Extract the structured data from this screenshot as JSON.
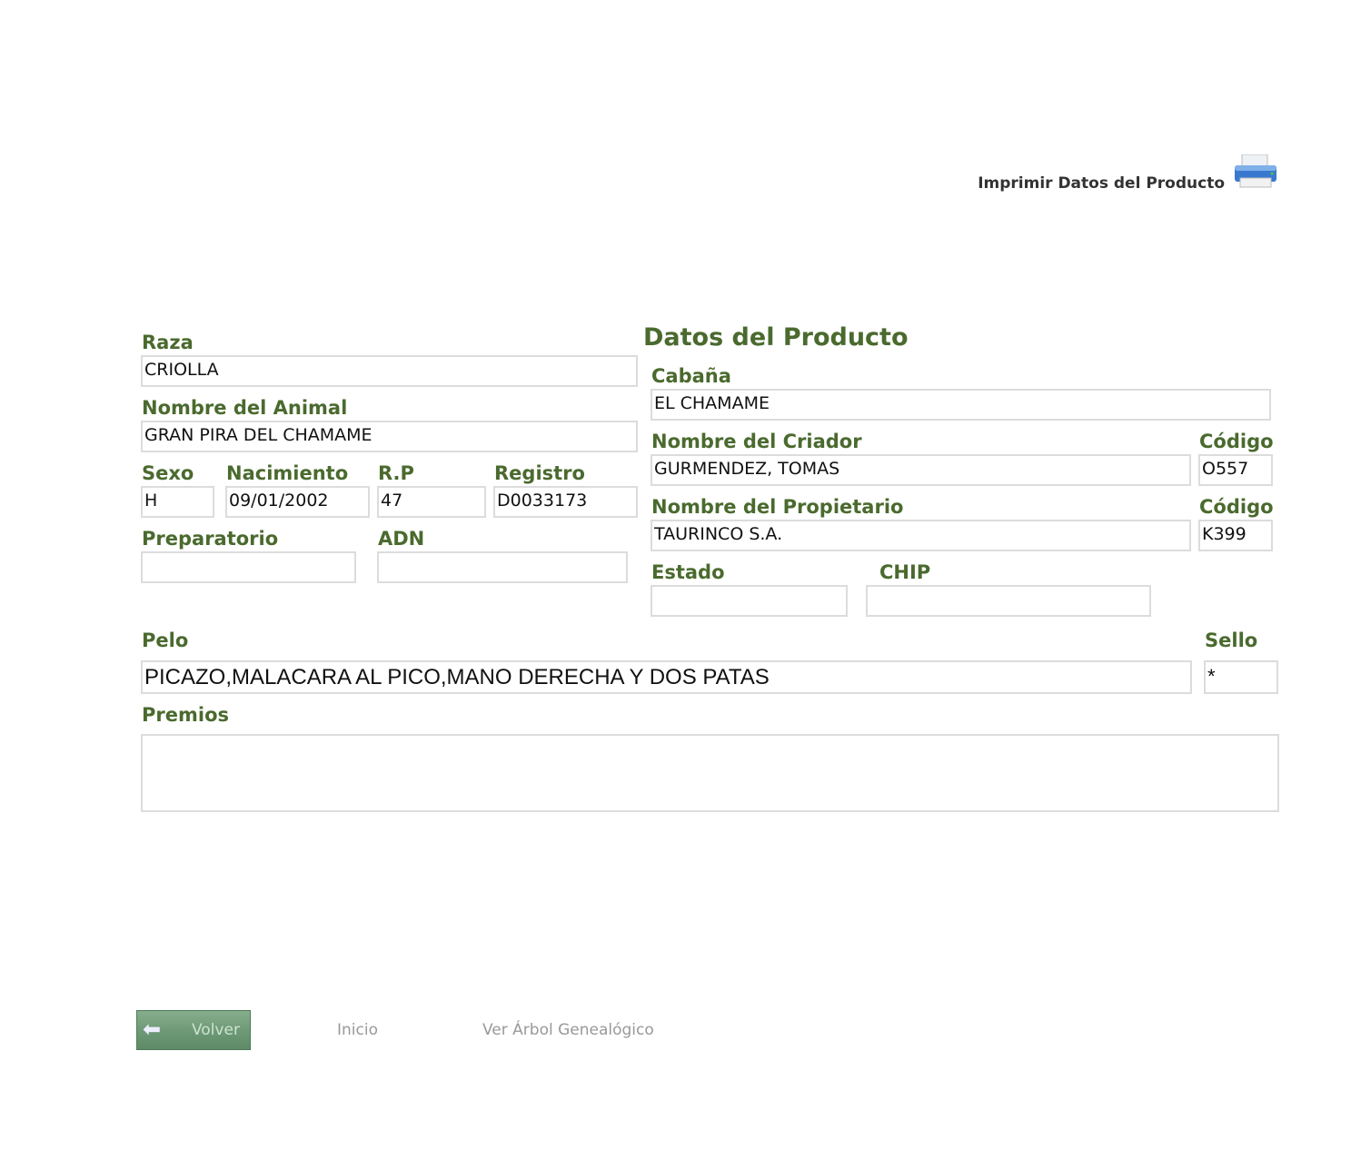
{
  "print": {
    "label": "Imprimir Datos del Producto",
    "icon": "printer-icon"
  },
  "heading": "Datos del Producto",
  "fields": {
    "raza": {
      "label": "Raza",
      "value": "CRIOLLA"
    },
    "nombre_animal": {
      "label": "Nombre del Animal",
      "value": "GRAN PIRA DEL CHAMAME"
    },
    "sexo": {
      "label": "Sexo",
      "value": "H"
    },
    "nacimiento": {
      "label": "Nacimiento",
      "value": "09/01/2002"
    },
    "rp": {
      "label": "R.P",
      "value": "47"
    },
    "registro": {
      "label": "Registro",
      "value": "D0033173"
    },
    "preparatorio": {
      "label": "Preparatorio",
      "value": ""
    },
    "adn": {
      "label": "ADN",
      "value": ""
    },
    "cabana": {
      "label": "Cabaña",
      "value": "EL CHAMAME"
    },
    "criador": {
      "label": "Nombre del Criador",
      "value": "GURMENDEZ, TOMAS"
    },
    "criador_codigo": {
      "label": "Código",
      "value": "O557"
    },
    "propietario": {
      "label": "Nombre del Propietario",
      "value": "TAURINCO S.A."
    },
    "propietario_codigo": {
      "label": "Código",
      "value": "K399"
    },
    "estado": {
      "label": "Estado",
      "value": ""
    },
    "chip": {
      "label": "CHIP",
      "value": ""
    },
    "pelo": {
      "label": "Pelo",
      "value": "PICAZO,MALACARA AL PICO,MANO DERECHA Y DOS PATAS"
    },
    "sello": {
      "label": "Sello",
      "value": "*"
    },
    "premios": {
      "label": "Premios",
      "value": ""
    }
  },
  "footer": {
    "volver": "Volver",
    "inicio": "Inicio",
    "arbol": "Ver Árbol Genealógico"
  },
  "colors": {
    "label": "#4a6a2e",
    "button": "#6f9a78"
  }
}
